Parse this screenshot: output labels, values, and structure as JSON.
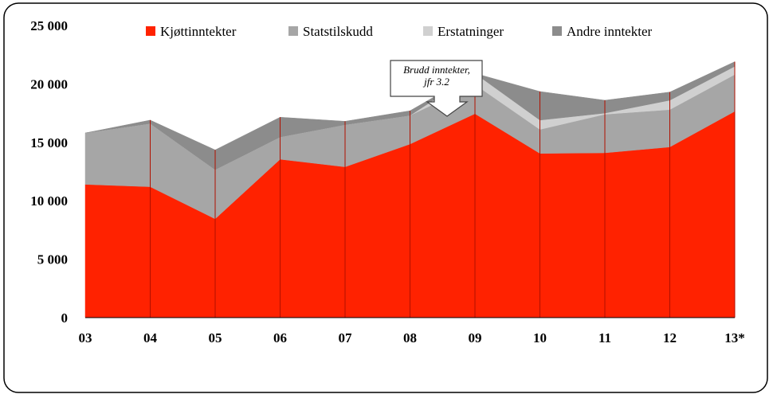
{
  "chart_data": {
    "type": "stacked-area",
    "categories": [
      "03",
      "04",
      "05",
      "06",
      "07",
      "08",
      "09",
      "10",
      "11",
      "12",
      "13*"
    ],
    "series": [
      {
        "name": "Kjøttinntekter",
        "color": "#ff2200",
        "values": [
          11400,
          11200,
          8450,
          13550,
          12900,
          14850,
          17450,
          14050,
          14100,
          14600,
          17650
        ]
      },
      {
        "name": "Statstilskudd",
        "color": "#a6a6a6",
        "values": [
          4400,
          5400,
          4200,
          1900,
          3600,
          2450,
          2500,
          2050,
          3300,
          3200,
          3150
        ]
      },
      {
        "name": "Erstatninger",
        "color": "#d0d0d0",
        "values": [
          0,
          0,
          0,
          0,
          0,
          0,
          950,
          800,
          100,
          800,
          700
        ]
      },
      {
        "name": "Andre inntekter",
        "color": "#8c8c8c",
        "values": [
          0,
          300,
          1700,
          1700,
          300,
          400,
          0,
          2450,
          1100,
          700,
          400
        ]
      }
    ],
    "ylim": [
      0,
      25000
    ],
    "yticks": [
      0,
      {
        "value": 5000,
        "label": "5 000"
      },
      {
        "value": 10000,
        "label": "10 000"
      },
      {
        "value": 15000,
        "label": "15 000"
      },
      {
        "value": 20000,
        "label": "20 000"
      },
      {
        "value": 25000,
        "label": "25 000"
      }
    ],
    "annotation": "Brudd inntekter, jfr 3.2"
  }
}
